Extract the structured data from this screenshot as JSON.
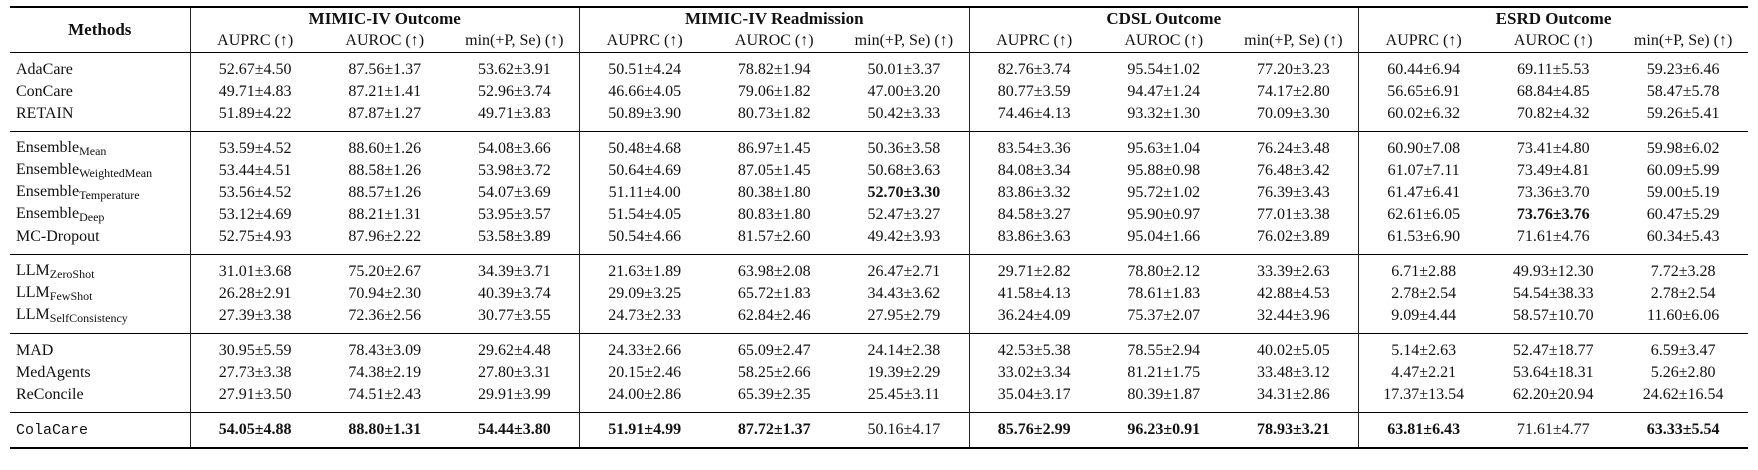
{
  "table": {
    "header": {
      "methods": "Methods",
      "groups": [
        {
          "title": "MIMIC-IV Outcome",
          "columns": [
            "AUPRC (↑)",
            "AUROC (↑)",
            "min(+P, Se) (↑)"
          ]
        },
        {
          "title": "MIMIC-IV Readmission",
          "columns": [
            "AUPRC (↑)",
            "AUROC (↑)",
            "min(+P, Se) (↑)"
          ]
        },
        {
          "title": "CDSL Outcome",
          "columns": [
            "AUPRC (↑)",
            "AUROC (↑)",
            "min(+P, Se) (↑)"
          ]
        },
        {
          "title": "ESRD Outcome",
          "columns": [
            "AUPRC (↑)",
            "AUROC (↑)",
            "min(+P, Se) (↑)"
          ]
        }
      ]
    },
    "sections": [
      {
        "rows": [
          {
            "method": "AdaCare",
            "values": [
              "52.67±4.50",
              "87.56±1.37",
              "53.62±3.91",
              "50.51±4.24",
              "78.82±1.94",
              "50.01±3.37",
              "82.76±3.74",
              "95.54±1.02",
              "77.20±3.23",
              "60.44±6.94",
              "69.11±5.53",
              "59.23±6.46"
            ],
            "bold": []
          },
          {
            "method": "ConCare",
            "values": [
              "49.71±4.83",
              "87.21±1.41",
              "52.96±3.74",
              "46.66±4.05",
              "79.06±1.82",
              "47.00±3.20",
              "80.77±3.59",
              "94.47±1.24",
              "74.17±2.80",
              "56.65±6.91",
              "68.84±4.85",
              "58.47±5.78"
            ],
            "bold": []
          },
          {
            "method": "RETAIN",
            "values": [
              "51.89±4.22",
              "87.87±1.27",
              "49.71±3.83",
              "50.89±3.90",
              "80.73±1.82",
              "50.42±3.33",
              "74.46±4.13",
              "93.32±1.30",
              "70.09±3.30",
              "60.02±6.32",
              "70.82±4.32",
              "59.26±5.41"
            ],
            "bold": []
          }
        ]
      },
      {
        "rows": [
          {
            "method": "Ensemble",
            "sub": "Mean",
            "values": [
              "53.59±4.52",
              "88.60±1.26",
              "54.08±3.66",
              "50.48±4.68",
              "86.97±1.45",
              "50.36±3.58",
              "83.54±3.36",
              "95.63±1.04",
              "76.24±3.48",
              "60.90±7.08",
              "73.41±4.80",
              "59.98±6.02"
            ],
            "bold": []
          },
          {
            "method": "Ensemble",
            "sub": "WeightedMean",
            "values": [
              "53.44±4.51",
              "88.58±1.26",
              "53.98±3.72",
              "50.64±4.69",
              "87.05±1.45",
              "50.68±3.63",
              "84.08±3.34",
              "95.88±0.98",
              "76.48±3.42",
              "61.07±7.11",
              "73.49±4.81",
              "60.09±5.99"
            ],
            "bold": []
          },
          {
            "method": "Ensemble",
            "sub": "Temperature",
            "values": [
              "53.56±4.52",
              "88.57±1.26",
              "54.07±3.69",
              "51.11±4.00",
              "80.38±1.80",
              "52.70±3.30",
              "83.86±3.32",
              "95.72±1.02",
              "76.39±3.43",
              "61.47±6.41",
              "73.36±3.70",
              "59.00±5.19"
            ],
            "bold": [
              5
            ]
          },
          {
            "method": "Ensemble",
            "sub": "Deep",
            "values": [
              "53.12±4.69",
              "88.21±1.31",
              "53.95±3.57",
              "51.54±4.05",
              "80.83±1.80",
              "52.47±3.27",
              "84.58±3.27",
              "95.90±0.97",
              "77.01±3.38",
              "62.61±6.05",
              "73.76±3.76",
              "60.47±5.29"
            ],
            "bold": [
              10
            ]
          },
          {
            "method": "MC-Dropout",
            "values": [
              "52.75±4.93",
              "87.96±2.22",
              "53.58±3.89",
              "50.54±4.66",
              "81.57±2.60",
              "49.42±3.93",
              "83.86±3.63",
              "95.04±1.66",
              "76.02±3.89",
              "61.53±6.90",
              "71.61±4.76",
              "60.34±5.43"
            ],
            "bold": []
          }
        ]
      },
      {
        "rows": [
          {
            "method": "LLM",
            "sub": "ZeroShot",
            "values": [
              "31.01±3.68",
              "75.20±2.67",
              "34.39±3.71",
              "21.63±1.89",
              "63.98±2.08",
              "26.47±2.71",
              "29.71±2.82",
              "78.80±2.12",
              "33.39±2.63",
              "6.71±2.88",
              "49.93±12.30",
              "7.72±3.28"
            ],
            "bold": []
          },
          {
            "method": "LLM",
            "sub": "FewShot",
            "values": [
              "26.28±2.91",
              "70.94±2.30",
              "40.39±3.74",
              "29.09±3.25",
              "65.72±1.83",
              "34.43±3.62",
              "41.58±4.13",
              "78.61±1.83",
              "42.88±4.53",
              "2.78±2.54",
              "54.54±38.33",
              "2.78±2.54"
            ],
            "bold": []
          },
          {
            "method": "LLM",
            "sub": "SelfConsistency",
            "values": [
              "27.39±3.38",
              "72.36±2.56",
              "30.77±3.55",
              "24.73±2.33",
              "62.84±2.46",
              "27.95±2.79",
              "36.24±4.09",
              "75.37±2.07",
              "32.44±3.96",
              "9.09±4.44",
              "58.57±10.70",
              "11.60±6.06"
            ],
            "bold": []
          }
        ]
      },
      {
        "rows": [
          {
            "method": "MAD",
            "values": [
              "30.95±5.59",
              "78.43±3.09",
              "29.62±4.48",
              "24.33±2.66",
              "65.09±2.47",
              "24.14±2.38",
              "42.53±5.38",
              "78.55±2.94",
              "40.02±5.05",
              "5.14±2.63",
              "52.47±18.77",
              "6.59±3.47"
            ],
            "bold": []
          },
          {
            "method": "MedAgents",
            "values": [
              "27.73±3.38",
              "74.38±2.19",
              "27.80±3.31",
              "20.15±2.46",
              "58.25±2.66",
              "19.39±2.29",
              "33.02±3.34",
              "81.21±1.75",
              "33.48±3.12",
              "4.47±2.21",
              "53.64±18.31",
              "5.26±2.80"
            ],
            "bold": []
          },
          {
            "method": "ReConcile",
            "values": [
              "27.91±3.50",
              "74.51±2.43",
              "29.91±3.99",
              "24.00±2.86",
              "65.39±2.35",
              "25.45±3.11",
              "35.04±3.17",
              "80.39±1.87",
              "34.31±2.86",
              "17.37±13.54",
              "62.20±20.94",
              "24.62±16.54"
            ],
            "bold": []
          }
        ]
      },
      {
        "rows": [
          {
            "method": "ColaCare",
            "mono": true,
            "values": [
              "54.05±4.88",
              "88.80±1.31",
              "54.44±3.80",
              "51.91±4.99",
              "87.72±1.37",
              "50.16±4.17",
              "85.76±2.99",
              "96.23±0.91",
              "78.93±3.21",
              "63.81±6.43",
              "71.61±4.77",
              "63.33±5.54"
            ],
            "bold": [
              0,
              1,
              2,
              3,
              4,
              6,
              7,
              8,
              9,
              11
            ]
          }
        ]
      }
    ]
  }
}
